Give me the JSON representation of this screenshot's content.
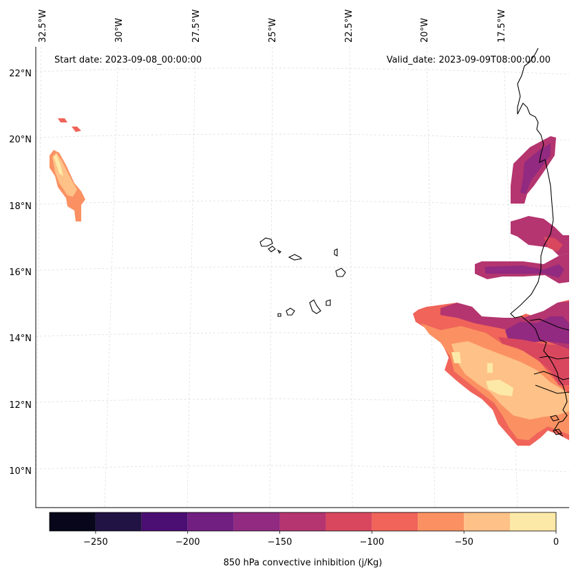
{
  "map": {
    "start_label": "Start date: 2023-09-08_00:00:00",
    "valid_label": "Valid_date: 2023-09-09T08:00:00.00",
    "lon_labels": [
      "32.5°W",
      "30°W",
      "27.5°W",
      "25°W",
      "22.5°W",
      "20°W",
      "17.5°W"
    ],
    "lat_labels": [
      "22°N",
      "20°N",
      "18°N",
      "16°N",
      "14°N",
      "12°N",
      "10°N"
    ]
  },
  "colorbar": {
    "label": "850 hPa convective inhibition (j/Kg)",
    "ticks": [
      "−250",
      "−200",
      "−150",
      "−100",
      "−50",
      "0"
    ],
    "levels": [
      -275,
      -250,
      -225,
      -200,
      -175,
      -150,
      -125,
      -100,
      -75,
      -50,
      -25,
      0
    ],
    "colors": [
      "#07061b",
      "#211343",
      "#4b0e72",
      "#711f81",
      "#912a80",
      "#b4356f",
      "#d9475f",
      "#f0645a",
      "#fb9162",
      "#fec188",
      "#fde9a7"
    ]
  }
}
